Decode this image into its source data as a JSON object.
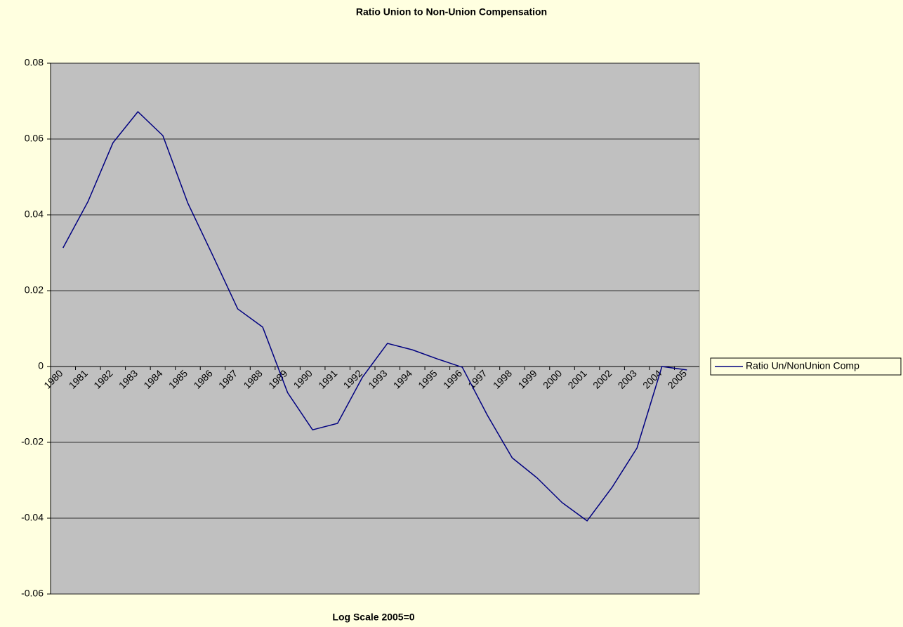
{
  "chart_data": {
    "type": "line",
    "title": "Ratio Union to Non-Union Compensation",
    "x_label": "Log Scale 2005=0",
    "categories": [
      "1980",
      "1981",
      "1982",
      "1983",
      "1984",
      "1985",
      "1986",
      "1987",
      "1988",
      "1989",
      "1990",
      "1991",
      "1992",
      "1993",
      "1994",
      "1995",
      "1996",
      "1997",
      "1998",
      "1999",
      "2000",
      "2001",
      "2002",
      "2003",
      "2004",
      "2005"
    ],
    "series": [
      {
        "name": "Ratio Un/NonUnion Comp",
        "color": "#000080",
        "values": [
          0.0313,
          0.0435,
          0.059,
          0.0672,
          0.0609,
          0.0431,
          0.0293,
          0.0152,
          0.0104,
          -0.0069,
          -0.0167,
          -0.015,
          -0.0028,
          0.0061,
          0.0044,
          0.002,
          -0.0002,
          -0.0128,
          -0.0241,
          -0.0294,
          -0.0359,
          -0.0407,
          -0.0319,
          -0.0215,
          0,
          -0.0009
        ]
      }
    ],
    "ylim": [
      -0.06,
      0.08
    ],
    "yticks": [
      -0.06,
      -0.04,
      -0.02,
      0,
      0.02,
      0.04,
      0.06,
      0.08
    ],
    "grid": true,
    "legend": "right"
  }
}
